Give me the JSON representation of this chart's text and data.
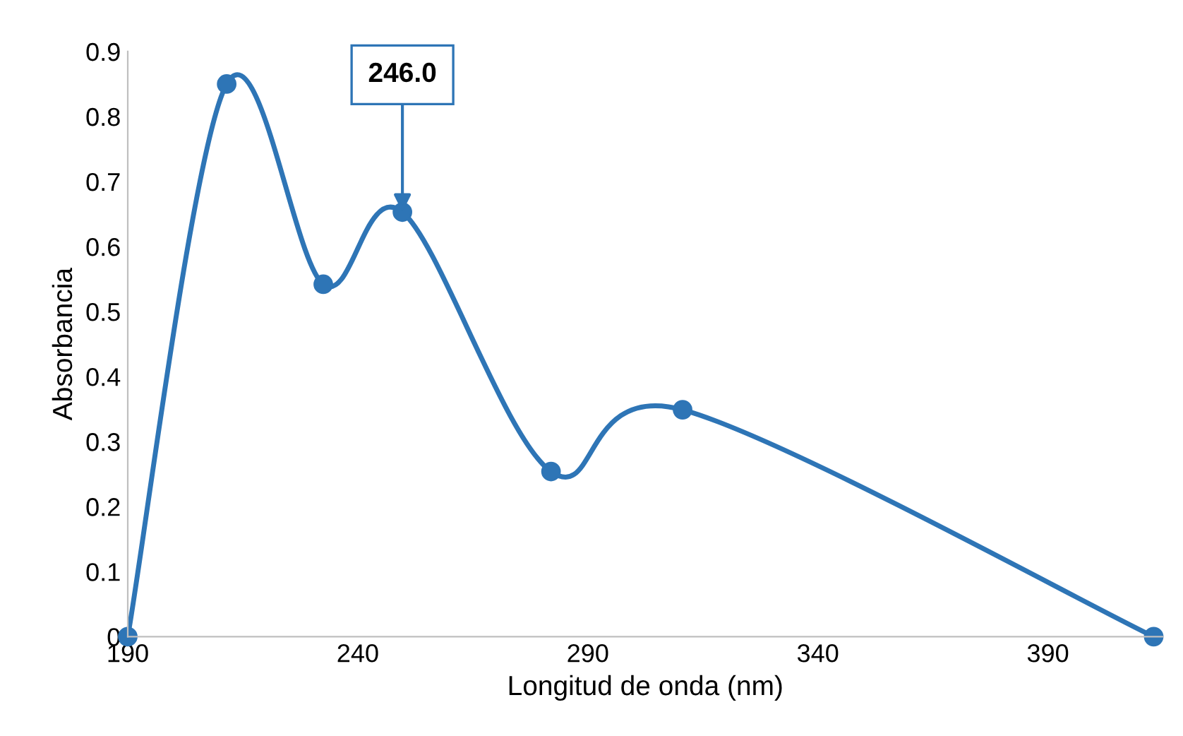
{
  "chart_data": {
    "type": "line",
    "xlabel": "Longitud de onda (nm)",
    "ylabel": "Absorbancia",
    "x": [
      190,
      211.5,
      232.5,
      249.7,
      282,
      310.6,
      413
    ],
    "series": [
      {
        "color": "#2e75b6",
        "values": [
          0,
          0.85,
          0.542,
          0.653,
          0.254,
          0.349,
          0
        ]
      }
    ],
    "xlim": [
      190,
      415
    ],
    "xticks": [
      190,
      240,
      290,
      340,
      390
    ],
    "ylim": [
      0,
      0.9
    ],
    "yticks": [
      0,
      0.1,
      0.2,
      0.3,
      0.4,
      0.5,
      0.6,
      0.7,
      0.8,
      0.9
    ],
    "marker": "circle",
    "line_style": "solid",
    "grid": false,
    "legend": false,
    "annotations": [
      {
        "text": "246.0",
        "x": 249.7,
        "y": 0.653
      }
    ]
  }
}
